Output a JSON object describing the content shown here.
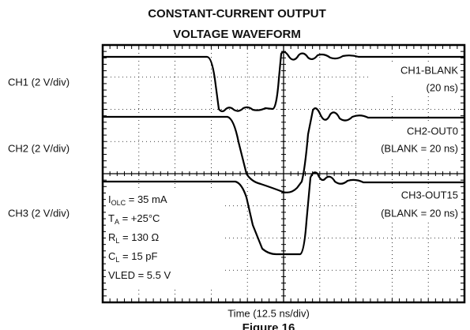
{
  "header": {
    "title_line1": "CONSTANT-CURRENT OUTPUT",
    "title_line2": "VOLTAGE WAVEFORM"
  },
  "channels": [
    {
      "scale": "CH1 (2 V/div)",
      "name": "CH1-BLANK",
      "detail": "(20 ns)"
    },
    {
      "scale": "CH2 (2 V/div)",
      "name": "CH2-OUT0",
      "detail": "(BLANK = 20 ns)"
    },
    {
      "scale": "CH3 (2 V/div)",
      "name": "CH3-OUT15",
      "detail": "(BLANK = 20 ns)"
    }
  ],
  "conditions": [
    {
      "symbol": "I",
      "sub": "OLC",
      "rest": " = 35 mA"
    },
    {
      "symbol": "T",
      "sub": "A",
      "rest": " = +25°C"
    },
    {
      "symbol": "R",
      "sub": "L",
      "rest": " = 130 Ω"
    },
    {
      "symbol": "C",
      "sub": "L",
      "rest": " = 15 pF"
    },
    {
      "symbol": "VLED = 5.5 V",
      "sub": "",
      "rest": ""
    }
  ],
  "footer": {
    "x_axis": "Time (12.5 ns/div)",
    "figure": "Figure 16"
  }
}
